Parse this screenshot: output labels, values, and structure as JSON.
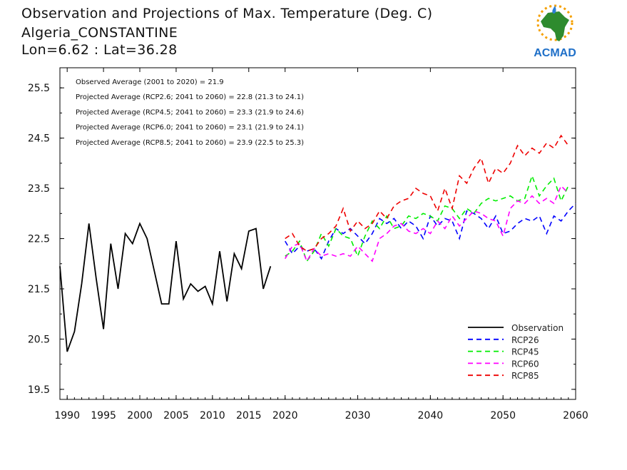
{
  "header": {
    "title": "Observation and Projections of Max. Temperature (Deg. C)",
    "station": "Algeria_CONSTANTINE",
    "coords": "Lon=6.62 : Lat=36.28"
  },
  "logo": {
    "text": "ACMAD",
    "icon": "africa-map-logo"
  },
  "colors": {
    "obs": "#000000",
    "rcp26": "#0000ff",
    "rcp45": "#00ee00",
    "rcp60": "#ff00ff",
    "rcp85": "#ee0000"
  },
  "chart_data": {
    "type": "line",
    "xlim": [
      1989,
      2060
    ],
    "ylim": [
      19.3,
      25.9
    ],
    "xticks": [
      1990,
      1995,
      2000,
      2005,
      2010,
      2015,
      2020,
      2030,
      2040,
      2050,
      2060
    ],
    "yticks": [
      19.5,
      20.5,
      21.5,
      22.5,
      23.5,
      24.5,
      25.5
    ],
    "annotations": [
      "Observed Average (2001 to 2020) = 21.9",
      "Projected Average (RCP2.6; 2041 to 2060) = 22.8 (21.3 to 24.1)",
      "Projected Average (RCP4.5; 2041 to 2060) = 23.3 (21.9 to 24.6)",
      "Projected Average (RCP6.0; 2041 to 2060) = 23.1 (21.9 to 24.1)",
      "Projected Average (RCP8.5; 2041 to 2060) = 23.9 (22.5 to 25.3)"
    ],
    "legend_position": "bottom-right",
    "series": [
      {
        "name": "Observation",
        "key": "obs",
        "dashed": false,
        "x": [
          1989,
          1990,
          1991,
          1992,
          1993,
          1994,
          1995,
          1996,
          1997,
          1998,
          1999,
          2000,
          2001,
          2002,
          2003,
          2004,
          2005,
          2006,
          2007,
          2008,
          2009,
          2010,
          2011,
          2012,
          2013,
          2014,
          2015,
          2016,
          2017,
          2018,
          2019,
          2020
        ],
        "y": [
          21.95,
          20.25,
          20.65,
          21.6,
          22.8,
          21.7,
          20.7,
          22.4,
          21.5,
          22.6,
          22.4,
          22.8,
          22.5,
          21.85,
          21.2,
          21.2,
          22.45,
          21.3,
          21.6,
          21.45,
          21.55,
          21.2,
          22.25,
          21.25,
          22.2,
          21.9,
          22.65,
          22.7,
          21.5,
          21.95,
          null,
          null
        ]
      },
      {
        "name": "RCP26",
        "key": "rcp26",
        "dashed": true,
        "x": [
          2020,
          2021,
          2022,
          2023,
          2024,
          2025,
          2026,
          2027,
          2028,
          2029,
          2030,
          2031,
          2032,
          2033,
          2034,
          2035,
          2036,
          2037,
          2038,
          2039,
          2040,
          2041,
          2042,
          2043,
          2044,
          2045,
          2046,
          2047,
          2048,
          2049,
          2050,
          2051,
          2052,
          2053,
          2054,
          2055,
          2056,
          2057,
          2058,
          2059,
          2060
        ],
        "y": [
          22.45,
          22.2,
          22.35,
          22.25,
          22.3,
          22.1,
          22.45,
          22.7,
          22.6,
          22.7,
          22.55,
          22.4,
          22.6,
          22.9,
          22.8,
          22.9,
          22.7,
          22.85,
          22.75,
          22.5,
          22.95,
          22.75,
          22.9,
          22.85,
          22.5,
          23.05,
          23.0,
          22.9,
          22.7,
          22.95,
          22.6,
          22.65,
          22.8,
          22.9,
          22.85,
          22.95,
          22.6,
          22.95,
          22.85,
          23.05,
          23.2
        ]
      },
      {
        "name": "RCP45",
        "key": "rcp45",
        "dashed": true,
        "x": [
          2020,
          2021,
          2022,
          2023,
          2024,
          2025,
          2026,
          2027,
          2028,
          2029,
          2030,
          2031,
          2032,
          2033,
          2034,
          2035,
          2036,
          2037,
          2038,
          2039,
          2040,
          2041,
          2042,
          2043,
          2044,
          2045,
          2046,
          2047,
          2048,
          2049,
          2050,
          2051,
          2052,
          2053,
          2054,
          2055,
          2056,
          2057,
          2058,
          2059,
          2060
        ],
        "y": [
          22.15,
          22.25,
          22.45,
          22.05,
          22.25,
          22.6,
          22.35,
          22.7,
          22.55,
          22.5,
          22.15,
          22.55,
          22.85,
          22.7,
          22.95,
          22.7,
          22.75,
          22.95,
          22.9,
          23.0,
          22.95,
          22.85,
          23.15,
          23.1,
          22.9,
          23.1,
          23.0,
          23.2,
          23.3,
          23.25,
          23.3,
          23.35,
          23.25,
          23.3,
          23.75,
          23.35,
          23.55,
          23.7,
          23.25,
          23.55,
          null
        ]
      },
      {
        "name": "RCP60",
        "key": "rcp60",
        "dashed": true,
        "x": [
          2020,
          2021,
          2022,
          2023,
          2024,
          2025,
          2026,
          2027,
          2028,
          2029,
          2030,
          2031,
          2032,
          2033,
          2034,
          2035,
          2036,
          2037,
          2038,
          2039,
          2040,
          2041,
          2042,
          2043,
          2044,
          2045,
          2046,
          2047,
          2048,
          2049,
          2050,
          2051,
          2052,
          2053,
          2054,
          2055,
          2056,
          2057,
          2058,
          2059,
          2060
        ],
        "y": [
          22.1,
          22.35,
          22.4,
          22.05,
          22.3,
          22.15,
          22.2,
          22.15,
          22.2,
          22.15,
          22.35,
          22.2,
          22.05,
          22.5,
          22.6,
          22.75,
          22.8,
          22.65,
          22.6,
          22.7,
          22.6,
          22.85,
          22.7,
          22.95,
          22.75,
          22.9,
          23.05,
          23.0,
          22.9,
          22.85,
          22.55,
          23.1,
          23.25,
          23.2,
          23.35,
          23.2,
          23.3,
          23.2,
          23.55,
          23.4,
          null
        ]
      },
      {
        "name": "RCP85",
        "key": "rcp85",
        "dashed": true,
        "x": [
          2020,
          2021,
          2022,
          2023,
          2024,
          2025,
          2026,
          2027,
          2028,
          2029,
          2030,
          2031,
          2032,
          2033,
          2034,
          2035,
          2036,
          2037,
          2038,
          2039,
          2040,
          2041,
          2042,
          2043,
          2044,
          2045,
          2046,
          2047,
          2048,
          2049,
          2050,
          2051,
          2052,
          2053,
          2054,
          2055,
          2056,
          2057,
          2058,
          2059,
          2060
        ],
        "y": [
          22.5,
          22.6,
          22.35,
          22.25,
          22.3,
          22.5,
          22.6,
          22.75,
          23.1,
          22.65,
          22.85,
          22.7,
          22.8,
          23.05,
          22.9,
          23.15,
          23.25,
          23.3,
          23.5,
          23.4,
          23.35,
          23.05,
          23.5,
          23.1,
          23.75,
          23.6,
          23.9,
          24.1,
          23.6,
          23.9,
          23.8,
          24.0,
          24.35,
          24.15,
          24.3,
          24.2,
          24.4,
          24.3,
          24.55,
          24.35,
          null
        ]
      }
    ]
  }
}
